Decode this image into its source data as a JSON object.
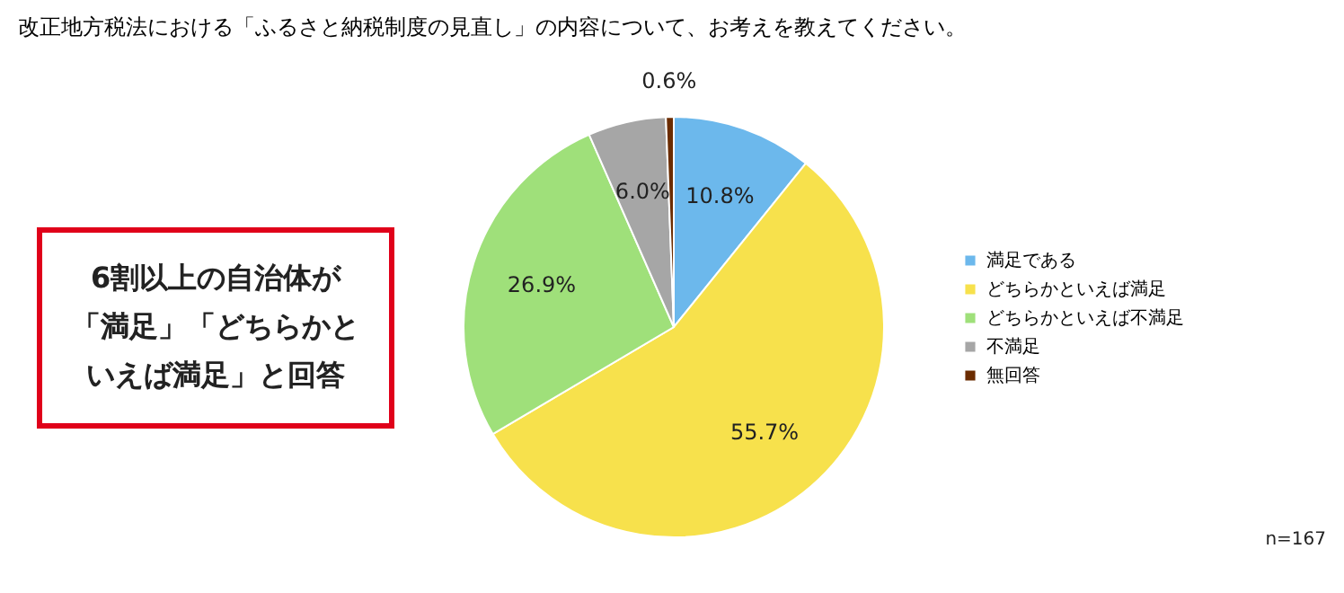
{
  "chart_data": {
    "type": "pie",
    "title": "改正地方税法における「ふるさと納税制度の見直し」の内容について、お考えを教えてください。",
    "categories": [
      "満足である",
      "どちらかといえば満足",
      "どちらかといえば不満足",
      "不満足",
      "無回答"
    ],
    "values": [
      10.8,
      55.7,
      26.9,
      6.0,
      0.6
    ],
    "colors": [
      "#6cb8ec",
      "#f7e14c",
      "#9fe07a",
      "#a6a6a6",
      "#6b2c00"
    ],
    "value_labels": [
      "10.8%",
      "55.7%",
      "26.9%",
      "6.0%",
      "0.6%"
    ],
    "legend": "right",
    "annotations": [
      "6割以上の自治体が",
      "「満足」「どちらかと",
      "いえば満足」と回答",
      "n=167"
    ]
  }
}
